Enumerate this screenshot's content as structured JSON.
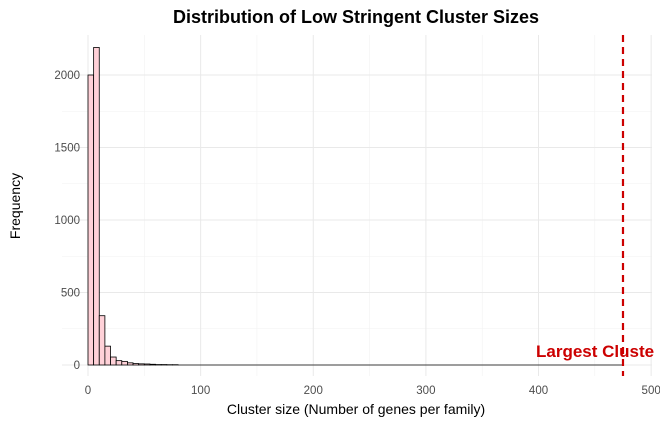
{
  "chart_data": {
    "type": "bar",
    "title": "Distribution of Low Stringent Cluster Sizes",
    "xlabel": "Cluster size (Number of genes per family)",
    "ylabel": "Frequency",
    "xlim": [
      -5,
      500
    ],
    "ylim": [
      0,
      2250
    ],
    "x_ticks": [
      0,
      100,
      200,
      300,
      400,
      500
    ],
    "y_ticks": [
      0,
      500,
      1000,
      1500,
      2000
    ],
    "bin_width": 5,
    "grid": true,
    "bins": [
      {
        "start": 0,
        "end": 5,
        "count": 2000
      },
      {
        "start": 5,
        "end": 10,
        "count": 2190
      },
      {
        "start": 10,
        "end": 15,
        "count": 340
      },
      {
        "start": 15,
        "end": 20,
        "count": 130
      },
      {
        "start": 20,
        "end": 25,
        "count": 55
      },
      {
        "start": 25,
        "end": 30,
        "count": 30
      },
      {
        "start": 30,
        "end": 35,
        "count": 25
      },
      {
        "start": 35,
        "end": 40,
        "count": 15
      },
      {
        "start": 40,
        "end": 45,
        "count": 10
      },
      {
        "start": 45,
        "end": 50,
        "count": 8
      },
      {
        "start": 50,
        "end": 55,
        "count": 7
      },
      {
        "start": 55,
        "end": 60,
        "count": 5
      },
      {
        "start": 60,
        "end": 65,
        "count": 3
      },
      {
        "start": 65,
        "end": 70,
        "count": 3
      },
      {
        "start": 70,
        "end": 75,
        "count": 2
      },
      {
        "start": 75,
        "end": 80,
        "count": 2
      }
    ],
    "annotation": {
      "label": "Largest Cluste",
      "x": 475,
      "color": "#cc0000",
      "line_style": "dashed"
    },
    "bar_fill": "#ffd1d8",
    "bar_stroke": "#000000"
  }
}
